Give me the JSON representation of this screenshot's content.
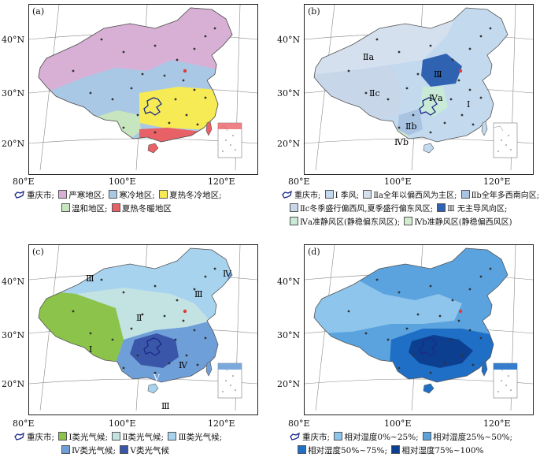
{
  "colors": {
    "frame": "#222222",
    "cold_severe": "#d8b0d6",
    "cold": "#a9c8e6",
    "hot_summer_cold_winter": "#f6ea55",
    "mild": "#c7e6bf",
    "hot_summer_warm_winter": "#e86166",
    "monsoon_I": "#c3d9ee",
    "IIa": "#d5e0ee",
    "IIb": "#a9c3e2",
    "IIc": "#c8d6ea",
    "III": "#2f62b0",
    "IVa": "#c8ead6",
    "IVb": "#d3eccf",
    "light_I": "#8cc34a",
    "light_II": "#c3e3e3",
    "light_III": "#a7d3ef",
    "light_IV": "#6f9fd8",
    "light_V": "#3a56a8",
    "rh_0_25": "#8ec5ec",
    "rh_25_50": "#5aa3de",
    "rh_50_75": "#1f6fc6",
    "rh_75_100": "#0c3f8f",
    "chongqing_outline": "#1b2a8a",
    "station_dot": "#333333",
    "beijing_dot": "#e23a3a"
  },
  "axes": {
    "lat_labels": [
      "40°N",
      "30°N",
      "20°N"
    ],
    "lon_labels": [
      "80°E",
      "100°E",
      "120°E"
    ]
  },
  "panels": {
    "a": {
      "label": "(a)",
      "legend": {
        "chongqing": "重庆市;",
        "items": [
          "严寒地区;",
          "寒冷地区;",
          "夏热冬冷地区;",
          "温和地区;",
          "夏热冬暖地区"
        ]
      },
      "icons": [
        "chongqing-icon",
        "severe-cold-swatch",
        "cold-swatch",
        "hot-summer-cold-winter-swatch",
        "mild-swatch",
        "hot-summer-warm-winter-swatch"
      ]
    },
    "b": {
      "label": "(b)",
      "region_labels": [
        "Ⅱa",
        "Ⅱc",
        "Ⅲ",
        "Ⅳa",
        "Ⅰ",
        "Ⅱb",
        "Ⅳb"
      ],
      "legend": {
        "chongqing": "重庆市;",
        "items": [
          "Ⅰ 季风;",
          "Ⅱa全年以偏西风为主区;",
          "Ⅱb全年多西南向区;",
          "Ⅱc冬季盛行偏西风,夏季盛行偏东风区;",
          "Ⅲ 无主导风向区;",
          "Ⅳa准静风区(静稳偏东风区);",
          "Ⅳb准静风区(静稳偏西风区)"
        ]
      }
    },
    "c": {
      "label": "(c)",
      "region_labels": [
        "Ⅲ",
        "Ⅳ",
        "Ⅲ",
        "Ⅱ",
        "Ⅰ",
        "Ⅴ",
        "Ⅳ",
        "Ⅲ"
      ],
      "legend": {
        "chongqing": "重庆市;",
        "items": [
          "Ⅰ类光气候;",
          "Ⅱ类光气候;",
          "Ⅲ类光气候;",
          "Ⅳ类光气候;",
          "Ⅴ类光气候"
        ]
      }
    },
    "d": {
      "label": "(d)",
      "legend": {
        "chongqing": "重庆市;",
        "items": [
          "相对湿度0%~25%;",
          "相对湿度25%~50%;",
          "相对湿度50%~75%;",
          "相对湿度75%~100%"
        ]
      }
    }
  }
}
